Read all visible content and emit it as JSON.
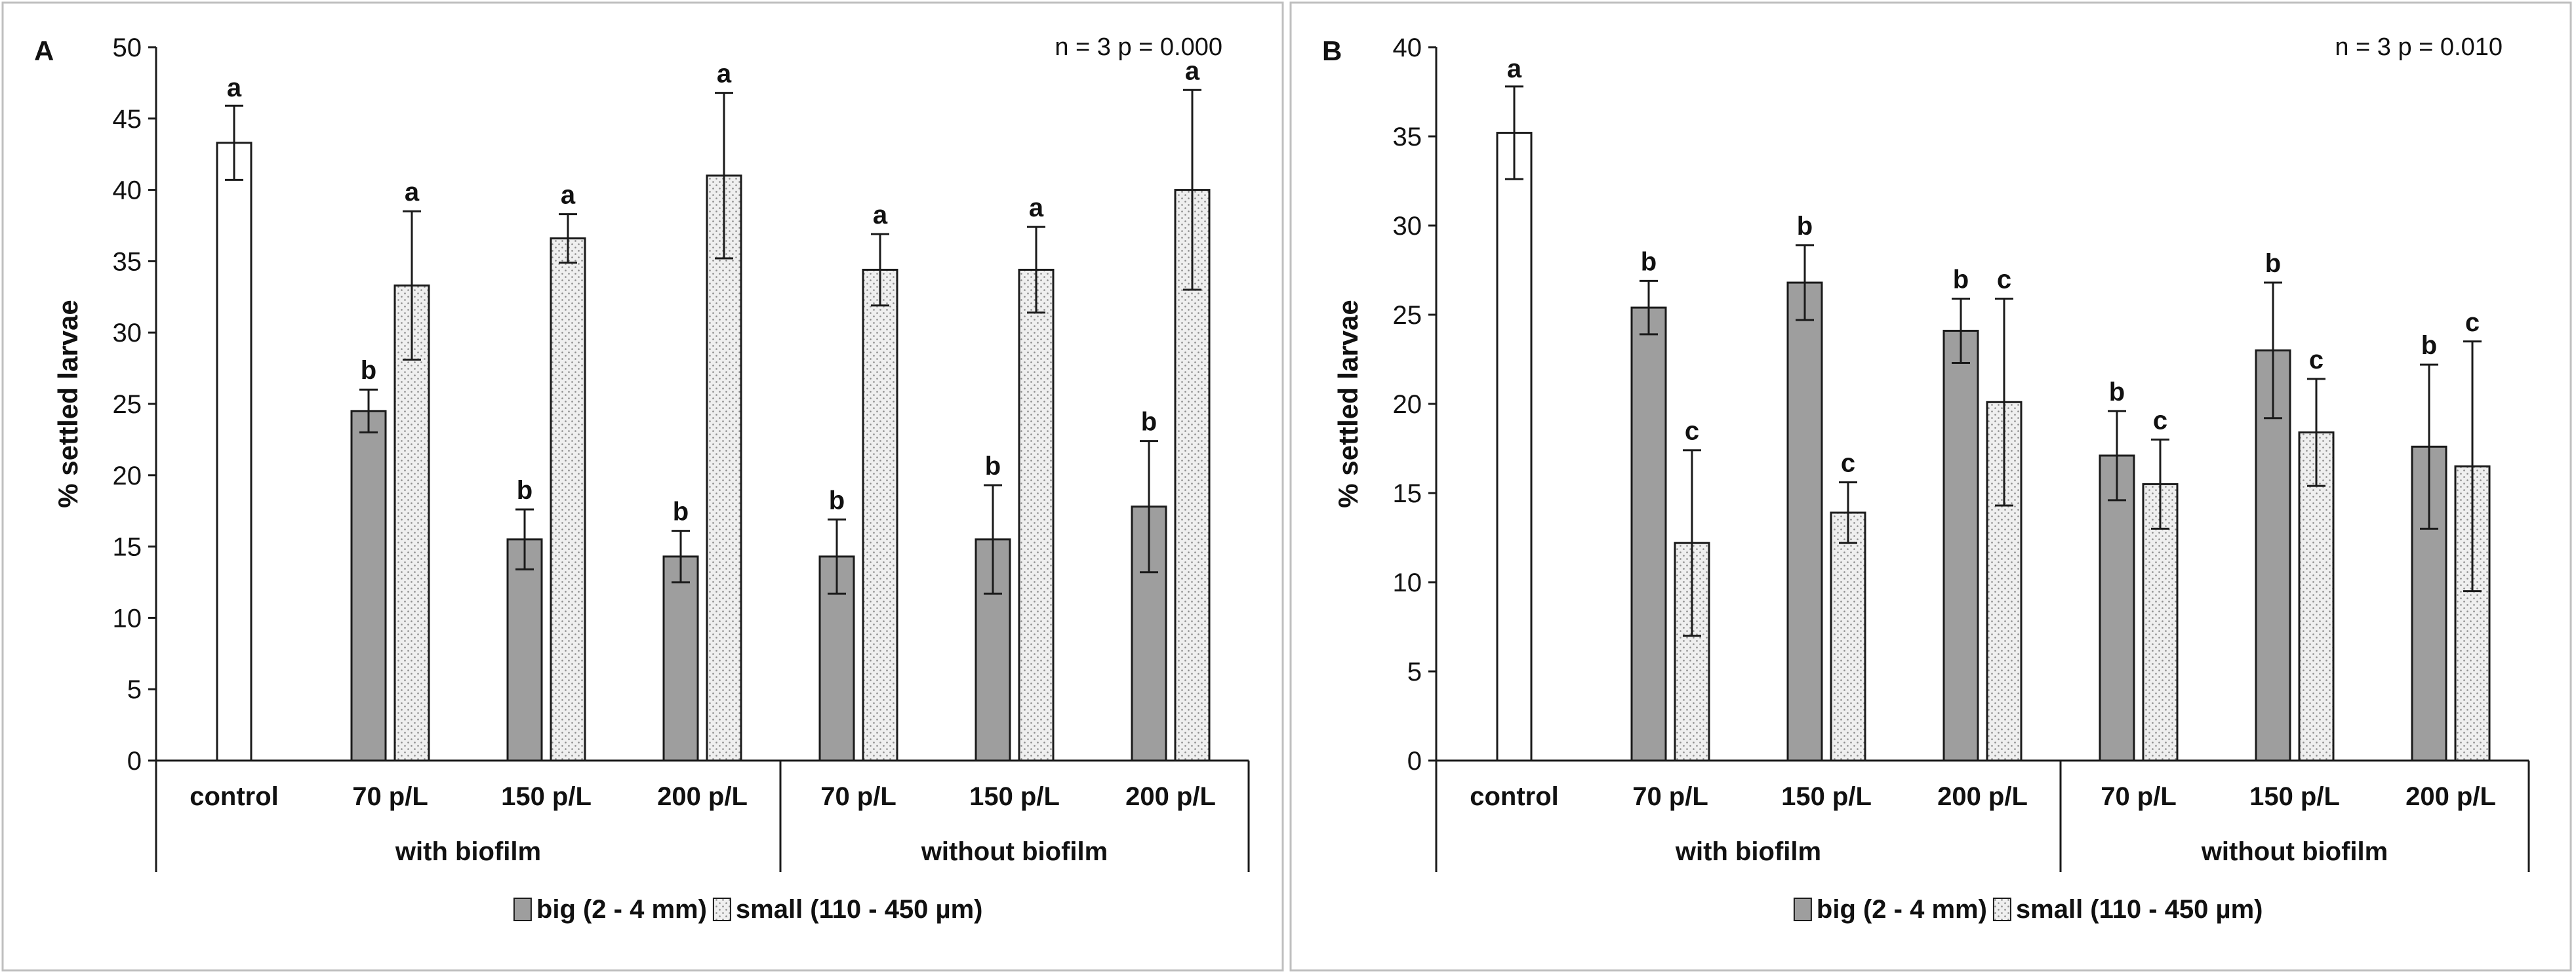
{
  "colors": {
    "big_fill": "#9e9e9e",
    "small_fill": "#efefef",
    "control_fill": "#ffffff",
    "stroke": "#1a1a1a",
    "panel_border": "#bfbfbf"
  },
  "legend": {
    "big": "big (2 - 4 mm)",
    "small": "small (110 - 450 µm)"
  },
  "chart_data": [
    {
      "type": "bar",
      "panel_label": "A",
      "stat_text": "n = 3 p = 0.000",
      "ylabel": "% settled larvae",
      "ylim": [
        0,
        50
      ],
      "yticks": [
        0,
        5,
        10,
        15,
        20,
        25,
        30,
        35,
        40,
        45,
        50
      ],
      "categories": [
        "control",
        "70 p/L",
        "150 p/L",
        "200 p/L",
        "70 p/L",
        "150 p/L",
        "200 p/L"
      ],
      "groups": [
        {
          "label": "with biofilm",
          "start": 0,
          "end": 3
        },
        {
          "label": "without biofilm",
          "start": 4,
          "end": 6
        }
      ],
      "control": {
        "value": 43.3,
        "error": 2.6,
        "sig": "a"
      },
      "series": [
        {
          "name": "big (2 - 4 mm)",
          "values": [
            null,
            24.5,
            15.5,
            14.3,
            14.3,
            15.5,
            17.8
          ],
          "errors": [
            null,
            1.5,
            2.1,
            1.8,
            2.6,
            3.8,
            4.6
          ],
          "sig": [
            null,
            "b",
            "b",
            "b",
            "b",
            "b",
            "b"
          ]
        },
        {
          "name": "small (110 - 450 µm)",
          "values": [
            null,
            33.3,
            36.6,
            41.0,
            34.4,
            34.4,
            40.0
          ],
          "errors": [
            null,
            5.2,
            1.7,
            5.8,
            2.5,
            3.0,
            7.0
          ],
          "sig": [
            null,
            "a",
            "a",
            "a",
            "a",
            "a",
            "a"
          ]
        }
      ]
    },
    {
      "type": "bar",
      "panel_label": "B",
      "stat_text": "n = 3 p = 0.010",
      "ylabel": "% settled larvae",
      "ylim": [
        0,
        40
      ],
      "yticks": [
        0,
        5,
        10,
        15,
        20,
        25,
        30,
        35,
        40
      ],
      "categories": [
        "control",
        "70 p/L",
        "150 p/L",
        "200 p/L",
        "70 p/L",
        "150 p/L",
        "200 p/L"
      ],
      "groups": [
        {
          "label": "with biofilm",
          "start": 0,
          "end": 3
        },
        {
          "label": "without biofilm",
          "start": 4,
          "end": 6
        }
      ],
      "control": {
        "value": 35.2,
        "error": 2.6,
        "sig": "a"
      },
      "series": [
        {
          "name": "big (2 - 4 mm)",
          "values": [
            null,
            25.4,
            26.8,
            24.1,
            17.1,
            23.0,
            17.6
          ],
          "errors": [
            null,
            1.5,
            2.1,
            1.8,
            2.5,
            3.8,
            4.6
          ],
          "sig": [
            null,
            "b",
            "b",
            "b",
            "b",
            "b",
            "b"
          ]
        },
        {
          "name": "small (110 - 450 µm)",
          "values": [
            null,
            12.2,
            13.9,
            20.1,
            15.5,
            18.4,
            16.5
          ],
          "errors": [
            null,
            5.2,
            1.7,
            5.8,
            2.5,
            3.0,
            7.0
          ],
          "sig": [
            null,
            "c",
            "c",
            "c",
            "c",
            "c",
            "c"
          ]
        }
      ]
    }
  ]
}
